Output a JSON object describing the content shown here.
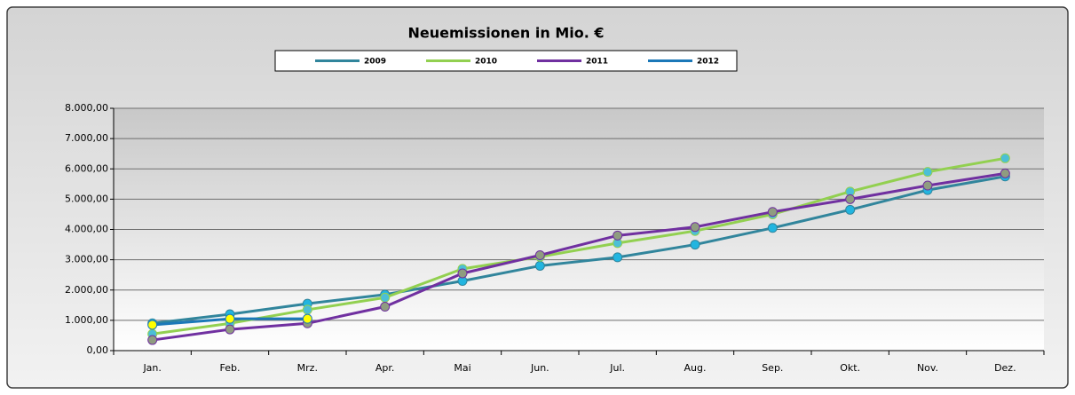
{
  "chart_data": {
    "type": "line",
    "title": "Neuemissionen in Mio. €",
    "categories": [
      "Jan.",
      "Feb.",
      "Mrz.",
      "Apr.",
      "Mai",
      "Jun.",
      "Jul.",
      "Aug.",
      "Sep.",
      "Okt.",
      "Nov.",
      "Dez."
    ],
    "series": [
      {
        "name": "2009",
        "color": "#31859c",
        "marker_color": "#22b5e0",
        "values": [
          900,
          1200,
          1550,
          1850,
          2300,
          2800,
          3080,
          3500,
          4050,
          4650,
          5300,
          5750
        ]
      },
      {
        "name": "2010",
        "color": "#92d050",
        "marker_color": "#4cbfd6",
        "values": [
          550,
          900,
          1350,
          1750,
          2700,
          3100,
          3550,
          3950,
          4500,
          5250,
          5900,
          6350
        ]
      },
      {
        "name": "2011",
        "color": "#7030a0",
        "marker_color": "#8f9c80",
        "values": [
          350,
          700,
          900,
          1450,
          2550,
          3150,
          3800,
          4080,
          4580,
          5000,
          5450,
          5850
        ]
      },
      {
        "name": "2012",
        "color": "#1b78b8",
        "marker_color": "#ffff00",
        "values": [
          850,
          1050,
          1050,
          null,
          null,
          null,
          null,
          null,
          null,
          null,
          null,
          null
        ]
      }
    ],
    "ylim": [
      0,
      8000
    ],
    "yticks": [
      {
        "value": 0,
        "label": "0,00"
      },
      {
        "value": 1000,
        "label": "1.000,00"
      },
      {
        "value": 2000,
        "label": "2.000,00"
      },
      {
        "value": 3000,
        "label": "3.000,00"
      },
      {
        "value": 4000,
        "label": "4.000,00"
      },
      {
        "value": 5000,
        "label": "5.000,00"
      },
      {
        "value": 6000,
        "label": "6.000,00"
      },
      {
        "value": 7000,
        "label": "7.000,00"
      },
      {
        "value": 8000,
        "label": "8.000,00"
      }
    ],
    "grid": true,
    "legend": "top"
  }
}
